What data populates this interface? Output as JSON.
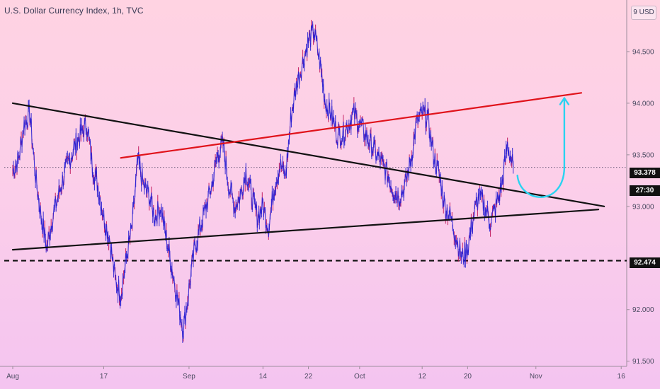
{
  "header": {
    "title": "U.S. Dollar Currency Index, 1h, TVC",
    "currency": "9 USD"
  },
  "badges": {
    "last_price": "93.378",
    "countdown": "27:30",
    "support_level": "92.474"
  },
  "colors": {
    "candles": "#2a1fd1",
    "candles_alt": "#c0145a",
    "rising_trendline": "#e0131b",
    "triangle_lines": "#111111",
    "projection_arrow": "#2ad3f0",
    "support_line": "#111111"
  },
  "chart_data": {
    "type": "line",
    "title": "U.S. Dollar Currency Index, 1h, TVC",
    "xlabel": "",
    "ylabel": "",
    "x_tick_labels": [
      "Aug",
      "17",
      "Sep",
      "14",
      "22",
      "Oct",
      "12",
      "20",
      "Nov",
      "16"
    ],
    "y_tick_labels": [
      "94.500",
      "94.000",
      "93.500",
      "93.000",
      "92.000",
      "91.500"
    ],
    "ylim": [
      91.45,
      95.0
    ],
    "grid": false,
    "series": [
      {
        "x": [
          "Aug 1",
          "Aug 2",
          "Aug 3",
          "Aug 4",
          "Aug 5",
          "Aug 6",
          "Aug 7",
          "Aug 8",
          "Aug 9",
          "Aug 10",
          "Aug 11",
          "Aug 12",
          "Aug 13",
          "Aug 14",
          "Aug 15",
          "Aug 16",
          "Aug 17",
          "Aug 18",
          "Aug 19",
          "Aug 20",
          "Aug 21",
          "Aug 22",
          "Aug 23",
          "Aug 24",
          "Aug 25",
          "Aug 26",
          "Aug 27",
          "Aug 28",
          "Aug 29",
          "Aug 30",
          "Aug 31",
          "Sep 1",
          "Sep 2",
          "Sep 3",
          "Sep 4",
          "Sep 5",
          "Sep 6",
          "Sep 7",
          "Sep 8",
          "Sep 9",
          "Sep 10",
          "Sep 11",
          "Sep 12",
          "Sep 13",
          "Sep 14",
          "Sep 15",
          "Sep 16",
          "Sep 17",
          "Sep 18",
          "Sep 19",
          "Sep 20",
          "Sep 21",
          "Sep 22",
          "Sep 23",
          "Sep 24",
          "Sep 25",
          "Sep 26",
          "Sep 27",
          "Sep 28",
          "Sep 29",
          "Sep 30",
          "Oct 1",
          "Oct 2",
          "Oct 3",
          "Oct 4",
          "Oct 5",
          "Oct 6",
          "Oct 7",
          "Oct 8",
          "Oct 9",
          "Oct 10",
          "Oct 11",
          "Oct 12",
          "Oct 13",
          "Oct 14",
          "Oct 15",
          "Oct 16",
          "Oct 17",
          "Oct 18",
          "Oct 19",
          "Oct 20",
          "Oct 21",
          "Oct 22",
          "Oct 23",
          "Oct 24",
          "Oct 25",
          "Oct 26",
          "Oct 27",
          "Oct 28"
        ],
        "values": [
          93.35,
          93.45,
          93.8,
          93.9,
          93.3,
          92.9,
          92.6,
          92.9,
          93.1,
          93.3,
          93.45,
          93.6,
          93.7,
          93.8,
          93.4,
          93.2,
          92.9,
          92.7,
          92.3,
          92.15,
          92.5,
          92.8,
          93.45,
          93.2,
          93.1,
          92.9,
          93.0,
          92.7,
          92.4,
          92.1,
          91.8,
          92.2,
          92.6,
          92.8,
          93.0,
          93.2,
          93.5,
          93.6,
          93.2,
          93.0,
          93.1,
          93.35,
          93.1,
          92.9,
          93.0,
          92.8,
          93.2,
          93.4,
          93.3,
          93.9,
          94.2,
          94.4,
          94.6,
          94.7,
          94.4,
          94.0,
          93.9,
          93.7,
          93.7,
          93.8,
          93.9,
          93.8,
          93.7,
          93.6,
          93.5,
          93.4,
          93.3,
          93.15,
          93.1,
          93.2,
          93.45,
          93.8,
          93.9,
          93.85,
          93.5,
          93.3,
          93.0,
          92.9,
          92.7,
          92.5,
          92.6,
          92.9,
          93.1,
          93.0,
          92.85,
          93.0,
          93.2,
          93.6,
          93.38
        ]
      }
    ],
    "annotations": {
      "triangle_upper_line": [
        [
          "Aug 1",
          94.0
        ],
        [
          "Nov 13",
          93.0
        ]
      ],
      "triangle_lower_line": [
        [
          "Aug 1",
          92.58
        ],
        [
          "Nov 12",
          92.97
        ]
      ],
      "rising_resistance_line": [
        [
          "Aug 20",
          93.47
        ],
        [
          "Nov 9",
          94.1
        ]
      ],
      "support_line_value": 92.474,
      "current_price_line_value": 93.378
    }
  }
}
